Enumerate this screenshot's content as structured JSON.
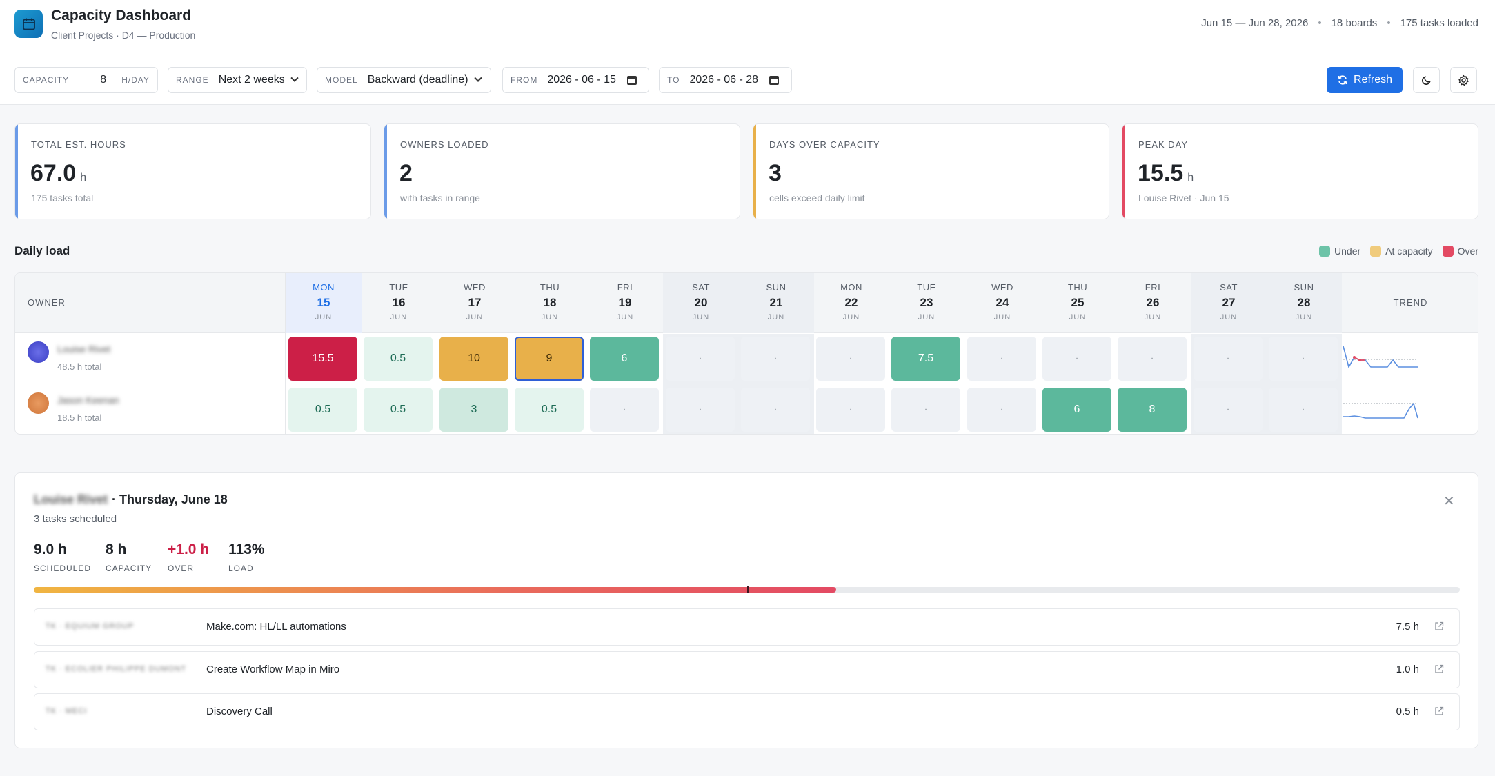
{
  "header": {
    "title": "Capacity Dashboard",
    "subtitle": "Client Projects · D4 — Production",
    "date_range": "Jun 15 — Jun 28, 2026",
    "boards": "18 boards",
    "tasks_loaded": "175 tasks loaded",
    "logo_icon": "calendar-icon"
  },
  "controls": {
    "capacity_label": "CAPACITY",
    "capacity_value": "8",
    "capacity_unit": "H/DAY",
    "range_label": "RANGE",
    "range_value": "Next 2 weeks",
    "model_label": "MODEL",
    "model_value": "Backward (deadline)",
    "from_label": "FROM",
    "from_value": "2026 - 06 - 15",
    "to_label": "TO",
    "to_value": "2026 - 06 - 28",
    "refresh_label": "Refresh"
  },
  "kpis": [
    {
      "label": "TOTAL EST. HOURS",
      "value": "67.0",
      "unit": "h",
      "sub": "175 tasks total",
      "accent": "#6b9be8"
    },
    {
      "label": "OWNERS LOADED",
      "value": "2",
      "unit": "",
      "sub": "with tasks in range",
      "accent": "#6b9be8"
    },
    {
      "label": "DAYS OVER CAPACITY",
      "value": "3",
      "unit": "",
      "sub": "cells exceed daily limit",
      "accent": "#e8b04a"
    },
    {
      "label": "PEAK DAY",
      "value": "15.5",
      "unit": "h",
      "sub": "Louise Rivet · Jun 15",
      "accent": "#e34a63"
    }
  ],
  "daily_load": {
    "title": "Daily load",
    "legend": [
      {
        "label": "Under",
        "color": "#6dc3a8"
      },
      {
        "label": "At capacity",
        "color": "#f0cb7c"
      },
      {
        "label": "Over",
        "color": "#e34a63"
      }
    ],
    "owner_header": "OWNER",
    "trend_header": "TREND",
    "days": [
      {
        "dow": "MON",
        "num": "15",
        "mon": "JUN",
        "weekend": false,
        "today": true
      },
      {
        "dow": "TUE",
        "num": "16",
        "mon": "JUN",
        "weekend": false,
        "today": false
      },
      {
        "dow": "WED",
        "num": "17",
        "mon": "JUN",
        "weekend": false,
        "today": false
      },
      {
        "dow": "THU",
        "num": "18",
        "mon": "JUN",
        "weekend": false,
        "today": false
      },
      {
        "dow": "FRI",
        "num": "19",
        "mon": "JUN",
        "weekend": false,
        "today": false
      },
      {
        "dow": "SAT",
        "num": "20",
        "mon": "JUN",
        "weekend": true,
        "today": false
      },
      {
        "dow": "SUN",
        "num": "21",
        "mon": "JUN",
        "weekend": true,
        "today": false
      },
      {
        "dow": "MON",
        "num": "22",
        "mon": "JUN",
        "weekend": false,
        "today": false
      },
      {
        "dow": "TUE",
        "num": "23",
        "mon": "JUN",
        "weekend": false,
        "today": false
      },
      {
        "dow": "WED",
        "num": "24",
        "mon": "JUN",
        "weekend": false,
        "today": false
      },
      {
        "dow": "THU",
        "num": "25",
        "mon": "JUN",
        "weekend": false,
        "today": false
      },
      {
        "dow": "FRI",
        "num": "26",
        "mon": "JUN",
        "weekend": false,
        "today": false
      },
      {
        "dow": "SAT",
        "num": "27",
        "mon": "JUN",
        "weekend": true,
        "today": false
      },
      {
        "dow": "SUN",
        "num": "28",
        "mon": "JUN",
        "weekend": true,
        "today": false
      }
    ],
    "owners": [
      {
        "initials": "LR",
        "name": "Louise Rivet",
        "total": "48.5 h total",
        "avatar_color": "#3b3fc4",
        "cells": [
          {
            "text": "15.5",
            "status": "over"
          },
          {
            "text": "0.5",
            "status": "under-light"
          },
          {
            "text": "10",
            "status": "atcap"
          },
          {
            "text": "9",
            "status": "atcap",
            "selected": true
          },
          {
            "text": "6",
            "status": "under-strong"
          },
          {
            "text": "·",
            "status": "empty"
          },
          {
            "text": "·",
            "status": "empty"
          },
          {
            "text": "·",
            "status": "empty"
          },
          {
            "text": "7.5",
            "status": "under-strong"
          },
          {
            "text": "·",
            "status": "empty"
          },
          {
            "text": "·",
            "status": "empty"
          },
          {
            "text": "·",
            "status": "empty"
          },
          {
            "text": "·",
            "status": "empty"
          },
          {
            "text": "·",
            "status": "empty"
          }
        ]
      },
      {
        "initials": "JK",
        "name": "Jason Keenan",
        "total": "18.5 h total",
        "avatar_color": "#d0763a",
        "cells": [
          {
            "text": "0.5",
            "status": "under-light"
          },
          {
            "text": "0.5",
            "status": "under-light"
          },
          {
            "text": "3",
            "status": "under-mid"
          },
          {
            "text": "0.5",
            "status": "under-light"
          },
          {
            "text": "·",
            "status": "empty"
          },
          {
            "text": "·",
            "status": "empty"
          },
          {
            "text": "·",
            "status": "empty"
          },
          {
            "text": "·",
            "status": "empty"
          },
          {
            "text": "·",
            "status": "empty"
          },
          {
            "text": "·",
            "status": "empty"
          },
          {
            "text": "6",
            "status": "under-strong"
          },
          {
            "text": "8",
            "status": "under-strong"
          },
          {
            "text": "·",
            "status": "empty"
          },
          {
            "text": "·",
            "status": "empty"
          }
        ]
      }
    ]
  },
  "detail": {
    "owner": "Louise Rivet",
    "date": "· Thursday, June 18",
    "subtitle": "3 tasks scheduled",
    "stats": [
      {
        "value": "9.0 h",
        "label": "SCHEDULED",
        "over": false
      },
      {
        "value": "8 h",
        "label": "CAPACITY",
        "over": false
      },
      {
        "value": "+1.0 h",
        "label": "OVER",
        "over": true
      },
      {
        "value": "113%",
        "label": "LOAD",
        "over": false
      }
    ],
    "load_fraction": 0.5625,
    "capacity_fraction": 0.5,
    "tasks": [
      {
        "source": "TK · EQUIUM GROUP",
        "name": "Make.com: HL/LL automations",
        "hours": "7.5 h"
      },
      {
        "source": "TK · ECOLIER PHILIPPE DUMONT",
        "name": "Create Workflow Map in Miro",
        "hours": "1.0 h"
      },
      {
        "source": "TK · MECI",
        "name": "Discovery Call",
        "hours": "0.5 h"
      }
    ]
  }
}
